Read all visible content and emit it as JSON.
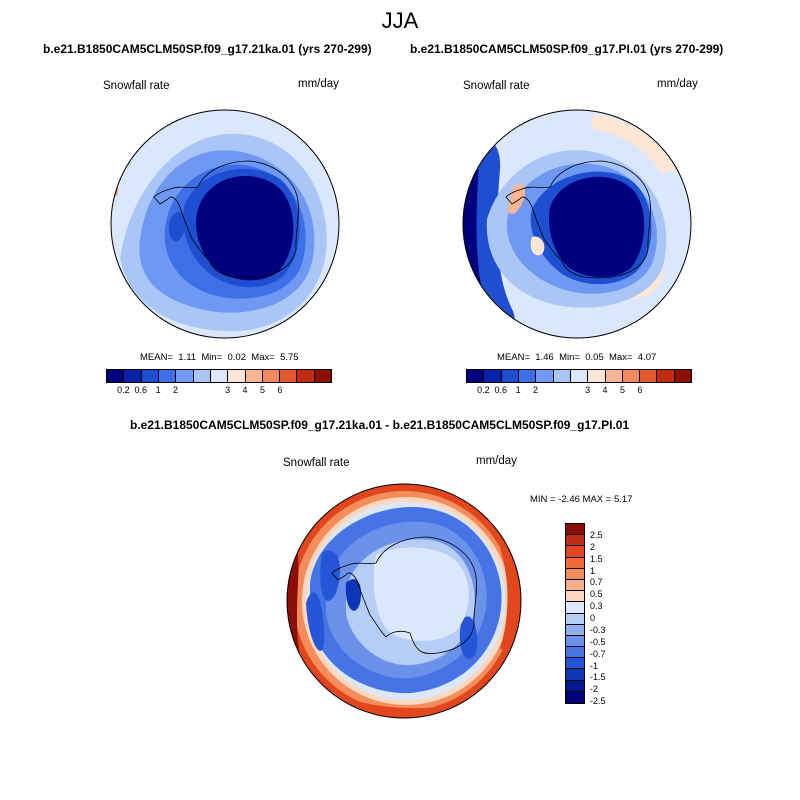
{
  "figure": {
    "season_title": "JJA",
    "top_left": {
      "case_title": "b.e21.B1850CAM5CLM50SP.f09_g17.21ka.01 (yrs 270-299)",
      "variable": "Snowfall rate",
      "units": "mm/day",
      "mean_label": "MEAN=",
      "mean_value": "1.11",
      "min_label": "Min=",
      "min_value": "0.02",
      "max_label": "Max=",
      "max_value": "5.75"
    },
    "top_right": {
      "case_title": "b.e21.B1850CAM5CLM50SP.f09_g17.PI.01 (yrs 270-299)",
      "variable": "Snowfall rate",
      "units": "mm/day",
      "mean_label": "MEAN=",
      "mean_value": "1.46",
      "min_label": "Min=",
      "min_value": "0.05",
      "max_label": "Max=",
      "max_value": "4.07"
    },
    "bottom": {
      "diff_title": "b.e21.B1850CAM5CLM50SP.f09_g17.21ka.01 - b.e21.B1850CAM5CLM50SP.f09_g17.PI.01",
      "variable": "Snowfall rate",
      "units": "mm/day",
      "min_max_text": "MIN = -2.46 MAX = 5.17"
    },
    "abs_colorbar": {
      "colors": [
        "#00007f",
        "#0a22a8",
        "#1e4fd0",
        "#3d70e8",
        "#6e98f2",
        "#a9c6f7",
        "#dbe8fb",
        "#fde6d6",
        "#f9b694",
        "#f38962",
        "#e2572e",
        "#c22c12",
        "#8d0e06"
      ],
      "tick_labels": [
        "0.2",
        "0.6",
        "1",
        "2",
        "3",
        "4",
        "5",
        "6"
      ],
      "tick_positions": [
        1,
        2,
        3,
        4,
        7,
        8,
        9,
        10
      ]
    },
    "diff_colorbar": {
      "colors": [
        "#8d0e06",
        "#c22c12",
        "#e1461c",
        "#ef6a36",
        "#f48c5c",
        "#f8b088",
        "#fcd8c0",
        "#dbe8fb",
        "#b6cdf6",
        "#8fb0f0",
        "#6a92ea",
        "#4674e4",
        "#2656d8",
        "#0d35b8",
        "#031890",
        "#00007a"
      ],
      "tick_labels": [
        "2.5",
        "2",
        "1.5",
        "1",
        "0.7",
        "0.5",
        "0.3",
        "0",
        "-0.3",
        "-0.5",
        "-0.7",
        "-1",
        "-1.5",
        "-2",
        "-2.5"
      ]
    }
  }
}
